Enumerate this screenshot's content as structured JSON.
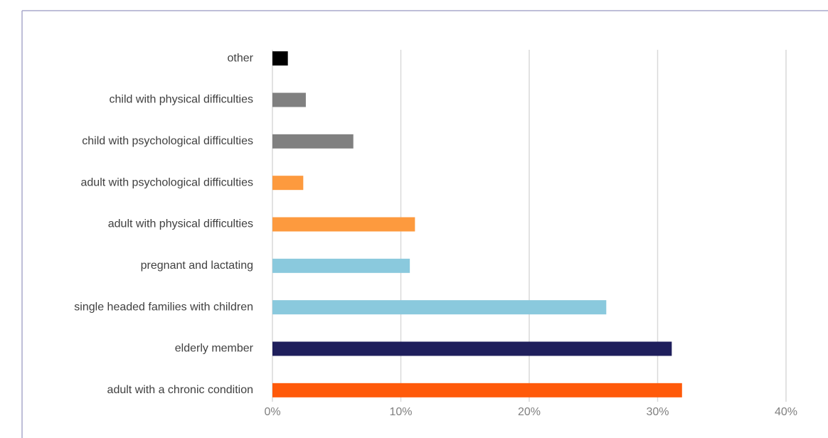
{
  "chart_data": {
    "type": "bar",
    "orientation": "horizontal",
    "categories": [
      "other",
      "child with physical difficulties",
      "child with psychological difficulties",
      "adult with psychological difficulties",
      "adult with physical difficulties",
      "pregnant and lactating",
      "single headed families with children",
      "elderly member",
      "adult with a chronic condition"
    ],
    "values": [
      1.2,
      2.6,
      6.3,
      2.4,
      11.1,
      10.7,
      26.0,
      31.1,
      31.9
    ],
    "colors": [
      "#000000",
      "#808080",
      "#808080",
      "#fd9a3e",
      "#fd9a3e",
      "#8ac9dd",
      "#8ac9dd",
      "#1f1f5c",
      "#ff5a0a"
    ],
    "xlim": [
      0,
      40
    ],
    "xticks": [
      {
        "value": 0,
        "label": "0%"
      },
      {
        "value": 10,
        "label": "10%"
      },
      {
        "value": 20,
        "label": "20%"
      },
      {
        "value": 30,
        "label": "30%"
      },
      {
        "value": 40,
        "label": "40%"
      }
    ],
    "grid": true
  }
}
